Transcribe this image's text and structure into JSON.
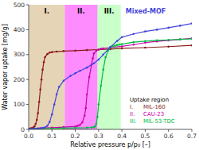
{
  "chart_data": {
    "type": "line",
    "marker": "circle",
    "grid": false,
    "x_label": "Relative pressure p/p₀ [–]",
    "y_label": "Water vapor uptake [mg/g]",
    "xlim": [
      0.0,
      0.7
    ],
    "ylim": [
      0,
      500
    ],
    "xticks": [
      {
        "value": 0.0,
        "label": "0.0"
      },
      0.1,
      0.2,
      0.3,
      0.4,
      0.5,
      0.6,
      0.7
    ],
    "yticks": [
      0,
      100,
      200,
      300,
      400,
      500
    ],
    "regions": [
      {
        "label": "I.",
        "xmin": 0.0,
        "xmax": 0.155,
        "color": "#c8a060"
      },
      {
        "label": "II.",
        "xmin": 0.155,
        "xmax": 0.295,
        "color": "#ff00ff"
      },
      {
        "label": "III.",
        "xmin": 0.295,
        "xmax": 0.395,
        "color": "#88ff88"
      }
    ],
    "legend_title": "Uptake region",
    "series": [
      {
        "name": "MIL-160",
        "color": "#8b1a1a",
        "x": [
          0.0,
          0.01,
          0.02,
          0.025,
          0.03,
          0.035,
          0.04,
          0.045,
          0.05,
          0.055,
          0.06,
          0.065,
          0.07,
          0.08,
          0.09,
          0.1,
          0.12,
          0.15,
          0.2,
          0.25,
          0.3,
          0.35,
          0.4,
          0.5,
          0.6,
          0.7
        ],
        "values": [
          3,
          5,
          8,
          12,
          22,
          38,
          65,
          110,
          160,
          200,
          240,
          270,
          290,
          302,
          308,
          310,
          312,
          314,
          316,
          318,
          320,
          322,
          325,
          328,
          332,
          337
        ]
      },
      {
        "name": "CAU-23",
        "color": "#cc00aa",
        "x": [
          0.0,
          0.05,
          0.1,
          0.15,
          0.2,
          0.21,
          0.22,
          0.23,
          0.24,
          0.245,
          0.25,
          0.26,
          0.27,
          0.275,
          0.28,
          0.29,
          0.3,
          0.31,
          0.32,
          0.35,
          0.4,
          0.45,
          0.5,
          0.55,
          0.6,
          0.65,
          0.7
        ],
        "values": [
          3,
          5,
          7,
          9,
          12,
          14,
          18,
          28,
          55,
          85,
          140,
          210,
          260,
          285,
          305,
          315,
          320,
          323,
          325,
          328,
          333,
          340,
          348,
          353,
          357,
          361,
          365
        ]
      },
      {
        "name": "MIL-53-TDC",
        "color": "#00bb44",
        "x": [
          0.0,
          0.05,
          0.1,
          0.15,
          0.2,
          0.25,
          0.27,
          0.28,
          0.285,
          0.29,
          0.295,
          0.3,
          0.31,
          0.32,
          0.33,
          0.34,
          0.35,
          0.36,
          0.37,
          0.38,
          0.39,
          0.4,
          0.45,
          0.5,
          0.55,
          0.6,
          0.65,
          0.7
        ],
        "values": [
          2,
          3,
          4,
          5,
          6,
          7,
          8,
          9,
          12,
          22,
          50,
          100,
          175,
          240,
          290,
          315,
          328,
          333,
          336,
          338,
          340,
          342,
          350,
          354,
          357,
          359,
          361,
          363
        ]
      },
      {
        "name": "Mixed-MOF",
        "color": "#4444dd",
        "x": [
          0.0,
          0.02,
          0.04,
          0.06,
          0.07,
          0.08,
          0.09,
          0.1,
          0.11,
          0.12,
          0.13,
          0.15,
          0.18,
          0.2,
          0.22,
          0.25,
          0.28,
          0.3,
          0.32,
          0.35,
          0.38,
          0.4,
          0.45,
          0.5,
          0.55,
          0.6,
          0.65,
          0.7
        ],
        "values": [
          2,
          3,
          4,
          6,
          8,
          14,
          30,
          60,
          100,
          140,
          170,
          195,
          215,
          225,
          235,
          248,
          265,
          280,
          300,
          330,
          355,
          370,
          383,
          393,
          400,
          408,
          416,
          425
        ]
      }
    ]
  }
}
